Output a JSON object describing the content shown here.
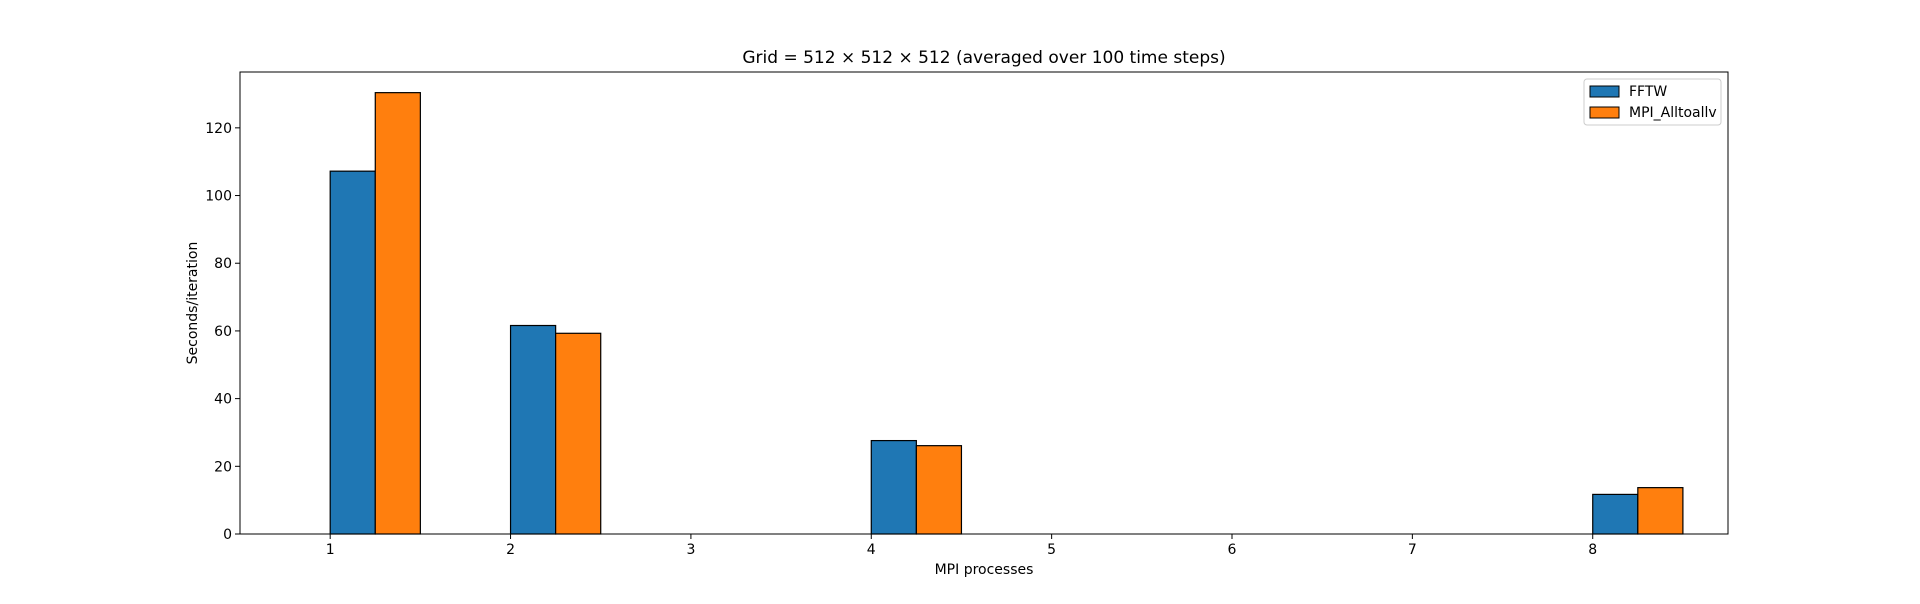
{
  "chart_data": {
    "type": "bar",
    "title": "Grid = 512 × 512 × 512 (averaged over 100 time steps)",
    "xlabel": "MPI processes",
    "ylabel": "Seconds/iteration",
    "x_ticks": [
      "1",
      "2",
      "3",
      "4",
      "5",
      "6",
      "7",
      "8"
    ],
    "xlim": [
      0.5,
      8.75
    ],
    "ylim": [
      0,
      136.5
    ],
    "y_ticks": [
      0,
      20,
      40,
      60,
      80,
      100,
      120
    ],
    "grid": false,
    "legend_position": "top-right",
    "series": [
      {
        "name": "FFTW",
        "color": "#1f77b4",
        "x": [
          1,
          2,
          4,
          8
        ],
        "values": [
          107.2,
          61.6,
          27.6,
          11.7
        ]
      },
      {
        "name": "MPI_Alltoallv",
        "color": "#ff7f0e",
        "x": [
          1,
          2,
          4,
          8
        ],
        "values": [
          130.4,
          59.3,
          26.1,
          13.7
        ]
      }
    ]
  }
}
